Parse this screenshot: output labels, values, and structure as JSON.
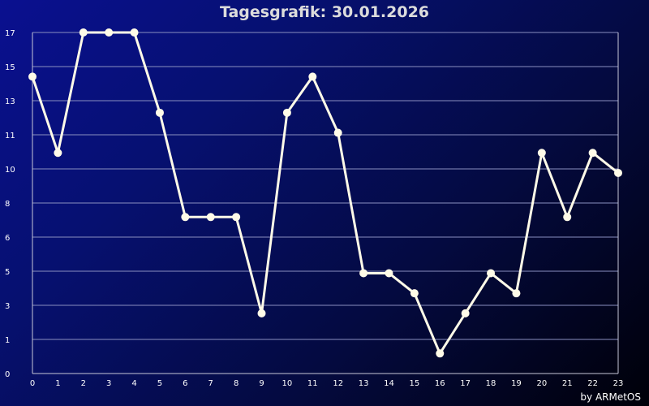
{
  "chart_data": {
    "type": "line",
    "title": "Tagesgrafik: 30.01.2026",
    "x": [
      0,
      1,
      2,
      3,
      4,
      5,
      6,
      7,
      8,
      9,
      10,
      11,
      12,
      13,
      14,
      15,
      16,
      17,
      18,
      19,
      20,
      21,
      22,
      23
    ],
    "xticks": [
      "0",
      "1",
      "2",
      "3",
      "4",
      "5",
      "6",
      "7",
      "8",
      "9",
      "10",
      "11",
      "12",
      "13",
      "14",
      "15",
      "16",
      "17",
      "18",
      "19",
      "20",
      "21",
      "22",
      "23"
    ],
    "ytick_labels": [
      "0",
      "1",
      "3",
      "5",
      "6",
      "8",
      "10",
      "11",
      "13",
      "15",
      "17"
    ],
    "ylim": [
      0,
      17
    ],
    "series": [
      {
        "values": [
          14.8,
          11.0,
          17.0,
          17.0,
          17.0,
          13.0,
          7.8,
          7.8,
          7.8,
          3.0,
          13.0,
          14.8,
          12.0,
          5.0,
          5.0,
          4.0,
          1.0,
          3.0,
          5.0,
          4.0,
          11.0,
          7.8,
          11.0,
          10.0
        ]
      }
    ],
    "line_color": "#fffbe8",
    "grid_color": "#8a8fc0",
    "grid": true
  },
  "footer": "by ARMetOS"
}
